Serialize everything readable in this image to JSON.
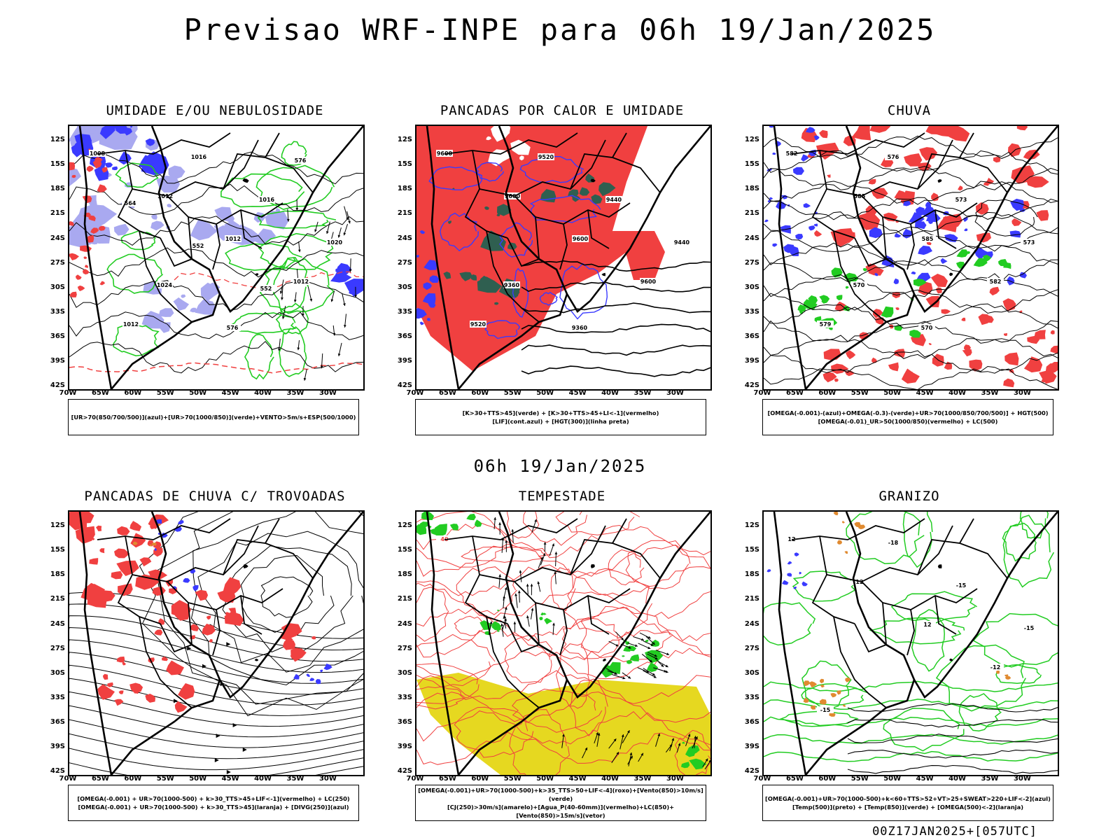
{
  "title": "Previsao WRF-INPE  para 06h 19/Jan/2025",
  "mid_title": "06h 19/Jan/2025",
  "footer": "00Z17JAN2025+[057UTC]",
  "lat_labels": [
    "12S",
    "15S",
    "18S",
    "21S",
    "24S",
    "27S",
    "30S",
    "33S",
    "36S",
    "39S",
    "42S"
  ],
  "lon_labels": [
    "70W",
    "65W",
    "60W",
    "55W",
    "50W",
    "45W",
    "40W",
    "35W",
    "30W"
  ],
  "colors": {
    "blue": "#3a3aff",
    "lightblue": "#a9a9f0",
    "green": "#22cc22",
    "red": "#f04040",
    "darkgreen": "#2f5f50",
    "yellow": "#e6d820",
    "orange": "#e08a30",
    "black": "#000000"
  },
  "panels": [
    {
      "title": "UMIDADE E/OU NEBULOSIDADE",
      "legend": [
        "[UR>70(850/700/500)](azul)+[UR>70(1000/850)](verde)+VENTO>5m/s+ESP(500/1000)"
      ],
      "contour_labels": [
        "1008",
        "1012",
        "1012",
        "1012",
        "1012",
        "1016",
        "1016",
        "1020",
        "1024",
        "576",
        "576",
        "564",
        "552",
        "552"
      ]
    },
    {
      "title": "PANCADAS POR CALOR E UMIDADE",
      "legend": [
        "[K>30+TTS>45](verde) + [K>30+TTS>45+LI<-1](vermelho)",
        "[LIF](cont.azul) + [HGT(300)](linha preta)"
      ],
      "contour_labels": [
        "9600",
        "9600",
        "9600",
        "9600",
        "9520",
        "9520",
        "9440",
        "9440",
        "9360",
        "9360"
      ]
    },
    {
      "title": "CHUVA",
      "legend": [
        "[OMEGA(-0.001)-(azul)+OMEGA(-0.3)-(verde)+UR>70(1000/850/700/500)] + HGT(500)",
        "[OMEGA(-0.01)_UR>50(1000/850)(vermelho) + LC(500)"
      ],
      "contour_labels": [
        "582",
        "585",
        "585",
        "582",
        "579",
        "576",
        "573",
        "573",
        "570",
        "570"
      ]
    },
    {
      "title": "PANCADAS DE CHUVA C/ TROVOADAS",
      "legend": [
        "[OMEGA(-0.001) + UR>70(1000-500) + k>30_TTS>45+LIF<-1](vermelho) + LC(250)",
        "[OMEGA(-0.001) + UR>70(1000-500) + k>30_TTS>45](laranja) + [DIVG(250)](azul)"
      ],
      "contour_labels": []
    },
    {
      "title": "TEMPESTADE",
      "legend": [
        "[OMEGA(-0.001)+UR>70(1000-500)+k>35_TTS>50+LIF<-4](roxo)+[Vento(850)>10m/s](verde)",
        "[CJ(250)>30m/s](amarelo)+[Agua_P(40-60mm)](vermelho)+LC(850)+[Vento(850)>15m/s](vetor)"
      ],
      "contour_labels": [
        "40"
      ]
    },
    {
      "title": "GRANIZO",
      "legend": [
        "[OMEGA(-0.001)+UR>70(1000-500)+k<60+TTS>52+VT>25+SWEAT>220+LIF<-2](azul)",
        "[Temp(500)](preto) + [Temp(850)](verde) + [OMEGA(500)<-2](laranja)"
      ],
      "contour_labels": [
        "12",
        "12",
        "12",
        "-12",
        "-15",
        "-18",
        "-15",
        "-15"
      ]
    }
  ]
}
